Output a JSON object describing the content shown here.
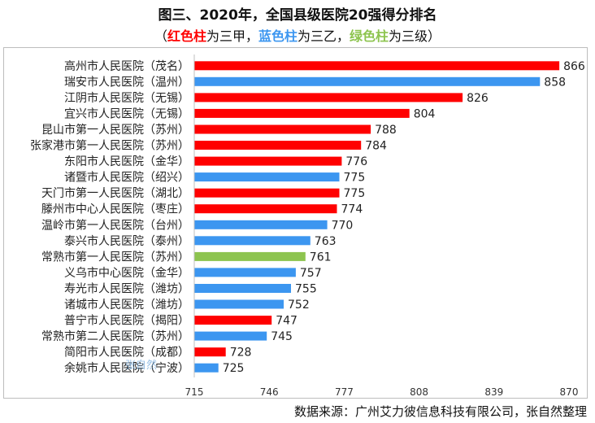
{
  "title": "图三、2020年，全国县级医院20强得分排名",
  "subtitle": {
    "open": "（",
    "red": "红色柱",
    "red_suffix": "为三甲，",
    "blue": "蓝色柱",
    "blue_suffix": "为三乙，",
    "green": "绿色柱",
    "green_suffix": "为三级）"
  },
  "colors": {
    "red": "#ff0000",
    "blue": "#3c96f0",
    "green": "#8dc44f"
  },
  "source": "数据来源：广州艾力彼信息科技有限公司，张自然整理",
  "watermark": "张自然",
  "chart_data": {
    "type": "bar",
    "orientation": "horizontal",
    "categories": [
      "高州市人民医院（茂名）",
      "瑞安市人民医院（温州）",
      "江阴市人民医院（无锡）",
      "宜兴市人民医院（无锡）",
      "昆山市第一人民医院（苏州）",
      "张家港市第一人民医院（苏州）",
      "东阳市人民医院（金华）",
      "诸暨市人民医院（绍兴）",
      "天门市第一人民医院（湖北）",
      "滕州市中心人民医院（枣庄）",
      "温岭市第一人民医院（台州）",
      "泰兴市人民医院（泰州）",
      "常熟市第一人民医院（苏州）",
      "义乌市中心医院（金华）",
      "寿光市人民医院（潍坊）",
      "诸城市人民医院（潍坊）",
      "普宁市人民医院（揭阳）",
      "常熟市第二人民医院（苏州）",
      "简阳市人民医院（成都）",
      "余姚市人民医院（宁波）"
    ],
    "values": [
      866,
      858,
      826,
      804,
      788,
      784,
      776,
      775,
      775,
      774,
      770,
      763,
      761,
      757,
      755,
      752,
      747,
      745,
      728,
      725
    ],
    "bar_colors": [
      "red",
      "blue",
      "red",
      "red",
      "red",
      "red",
      "red",
      "blue",
      "red",
      "red",
      "blue",
      "blue",
      "green",
      "blue",
      "blue",
      "blue",
      "red",
      "blue",
      "red",
      "blue"
    ],
    "xlim": [
      715,
      870
    ],
    "xticks": [
      715,
      746,
      777,
      808,
      839,
      870
    ],
    "grid": false,
    "legend": "none"
  }
}
